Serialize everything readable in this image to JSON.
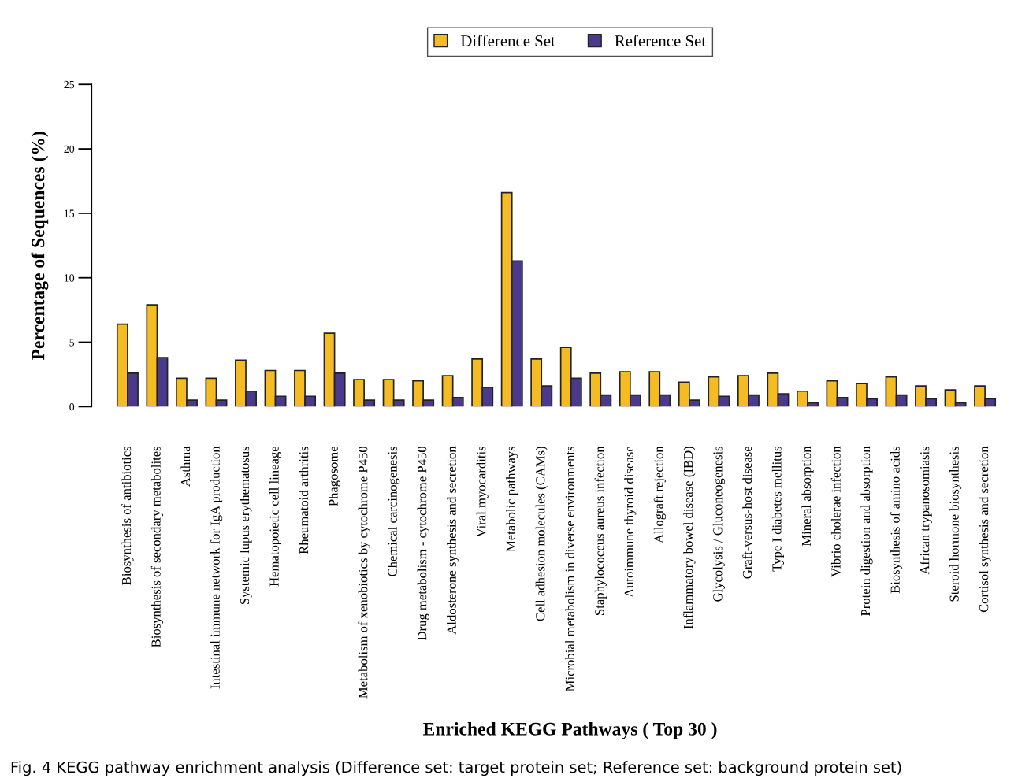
{
  "chart_data": {
    "type": "bar",
    "xlabel": "Enriched KEGG Pathways ( Top 30 )",
    "ylabel": "Percentage of Sequences (%)",
    "categories": [
      "Biosynthesis of antibiotics",
      "Biosynthesis of secondary metabolites",
      "Asthma",
      "Intestinal immune network for IgA production",
      "Systemic lupus erythematosus",
      "Hematopoietic cell lineage",
      "Rheumatoid arthritis",
      "Phagosome",
      "Metabolism of xenobiotics by cytochrome P450",
      "Chemical carcinogenesis",
      "Drug metabolism - cytochrome P450",
      "Aldosterone synthesis and secretion",
      "Viral myocarditis",
      "Metabolic pathways",
      "Cell adhesion molecules (CAMs)",
      "Microbial metabolism in diverse environments",
      "Staphylococcus aureus infection",
      "Autoimmune thyroid disease",
      "Allograft rejection",
      "Inflammatory bowel disease (IBD)",
      "Glycolysis / Gluconeogenesis",
      "Graft-versus-host disease",
      "Type I diabetes mellitus",
      "Mineral absorption",
      "Vibrio cholerae infection",
      "Protein digestion and absorption",
      "Biosynthesis of amino acids",
      "African trypanosomiasis",
      "Steroid hormone biosynthesis",
      "Cortisol synthesis and secretion"
    ],
    "series": [
      {
        "name": "Difference Set",
        "color": "#f4bb22",
        "values": [
          6.4,
          7.9,
          2.2,
          2.2,
          3.6,
          2.8,
          2.8,
          5.7,
          2.1,
          2.1,
          2.0,
          2.4,
          3.7,
          16.6,
          3.7,
          4.6,
          2.6,
          2.7,
          2.7,
          1.9,
          2.3,
          2.4,
          2.6,
          1.2,
          2.0,
          1.8,
          2.3,
          1.6,
          1.3,
          1.6
        ]
      },
      {
        "name": "Reference Set",
        "color": "#4b3a8c",
        "values": [
          2.6,
          3.8,
          0.5,
          0.5,
          1.2,
          0.8,
          0.8,
          2.6,
          0.5,
          0.5,
          0.5,
          0.7,
          1.5,
          11.3,
          1.6,
          2.2,
          0.9,
          0.9,
          0.9,
          0.5,
          0.8,
          0.9,
          1.0,
          0.3,
          0.7,
          0.6,
          0.9,
          0.6,
          0.3,
          0.6
        ]
      }
    ],
    "ylim": [
      0,
      25
    ],
    "yticks": [
      0,
      5,
      10,
      15,
      20,
      25
    ],
    "grid": false,
    "legend": "top",
    "annotations": [
      "Fig. 4 KEGG pathway enrichment analysis (Difference set: target protein set; Reference set: background protein set)"
    ]
  }
}
